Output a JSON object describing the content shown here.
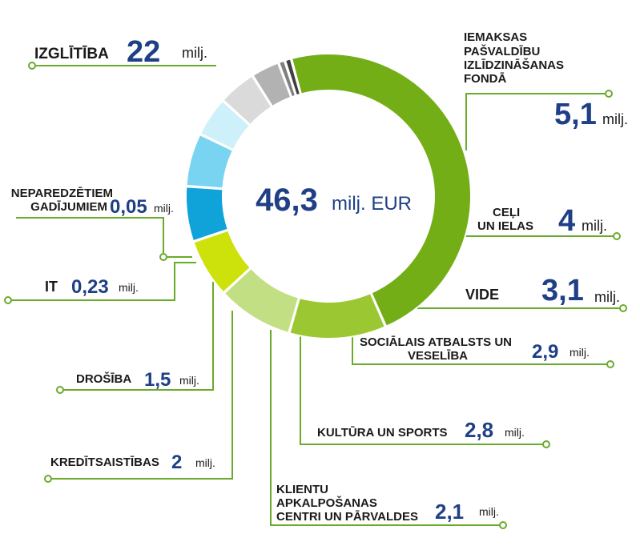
{
  "chart_data": {
    "type": "pie",
    "donut": true,
    "total": {
      "value": "46,3",
      "unit": "milj. EUR"
    },
    "unit_label": "milj.",
    "slices": [
      {
        "label": "IZGLĪTĪBA",
        "value": 22,
        "display": "22",
        "color": "#73ae17"
      },
      {
        "label": "IEMAKSAS PAŠVALDĪBU IZLĪDZINĀŠANAS FONDĀ",
        "value": 5.1,
        "display": "5,1",
        "color": "#9bc832"
      },
      {
        "label": "CEĻI UN IELAS",
        "value": 4,
        "display": "4",
        "color": "#c3df84"
      },
      {
        "label": "VIDE",
        "value": 3.1,
        "display": "3,1",
        "color": "#cde10b"
      },
      {
        "label": "SOCIĀLAIS ATBALSTS UN VESELĪBA",
        "value": 2.9,
        "display": "2,9",
        "color": "#0fa3da"
      },
      {
        "label": "KULTŪRA UN SPORTS",
        "value": 2.8,
        "display": "2,8",
        "color": "#79d4f1"
      },
      {
        "label": "KLIENTU APKALPOŠANAS CENTRI UN PĀRVALDES",
        "value": 2.1,
        "display": "2,1",
        "color": "#cdf0fa"
      },
      {
        "label": "KREDĪTSAISTĪBAS",
        "value": 2,
        "display": "2",
        "color": "#dadada"
      },
      {
        "label": "DROŠĪBA",
        "value": 1.5,
        "display": "1,5",
        "color": "#b2b2b2"
      },
      {
        "label": "IT",
        "value": 0.23,
        "display": "0,23",
        "color": "#7f7f7f"
      },
      {
        "label": "NEPAREDZĒTIEM GADĪJUMIEM",
        "value": 0.05,
        "display": "0,05",
        "color": "#404040"
      }
    ],
    "leader_color": "#6aab2a"
  }
}
